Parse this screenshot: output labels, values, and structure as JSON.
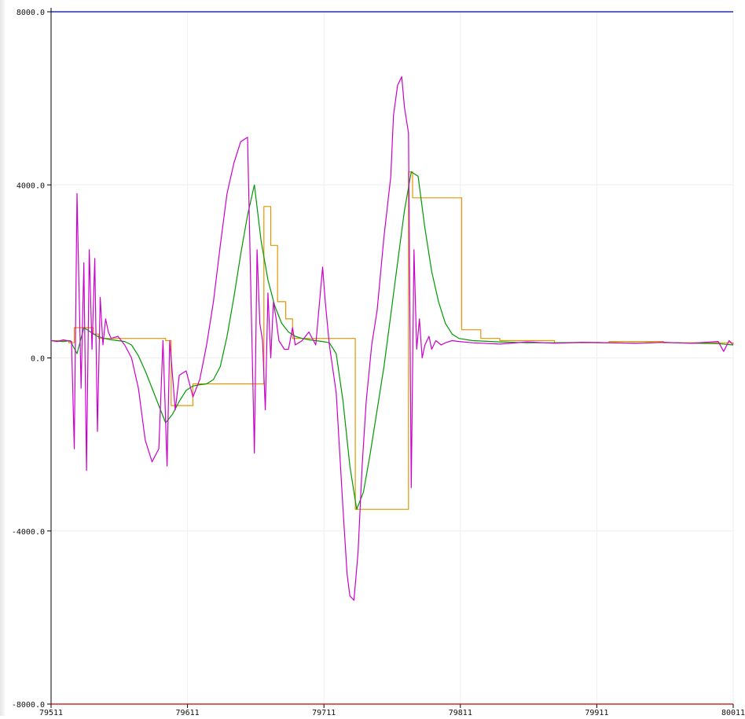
{
  "chart_data": {
    "type": "line",
    "title": "",
    "xlabel": "",
    "ylabel": "",
    "xlim": [
      79511,
      80011
    ],
    "ylim": [
      -8000,
      8000
    ],
    "grid": true,
    "x_ticks": [
      {
        "value": 79511,
        "label": "79511"
      },
      {
        "value": 79611,
        "label": "79611"
      },
      {
        "value": 79711,
        "label": "79711"
      },
      {
        "value": 79811,
        "label": "79811"
      },
      {
        "value": 79911,
        "label": "79911"
      },
      {
        "value": 80011,
        "label": "80011"
      }
    ],
    "y_ticks": [
      {
        "value": 8000,
        "label": "8000.0"
      },
      {
        "value": 4000,
        "label": "4000.0"
      },
      {
        "value": 0,
        "label": "0.0"
      },
      {
        "value": -4000,
        "label": "-4000.0"
      },
      {
        "value": -8000,
        "label": "-8000.0"
      }
    ],
    "series": [
      {
        "color": "#0000aa",
        "x": [
          79511,
          80011
        ],
        "values": [
          8000,
          8000
        ]
      },
      {
        "color": "#cc0000",
        "x": [
          79511,
          80011
        ],
        "values": [
          -8000,
          -8000
        ]
      },
      {
        "color": "#e69500",
        "step": true,
        "x": [
          79511,
          79524,
          79528,
          79542,
          79546,
          79595,
          79599,
          79615,
          79631,
          79667,
          79672,
          79677,
          79683,
          79688,
          79723,
          79734,
          79773,
          79776,
          79812,
          79826,
          79840,
          79880,
          79920,
          79960,
          80011
        ],
        "values": [
          400,
          350,
          700,
          550,
          450,
          400,
          -1100,
          -600,
          -600,
          3500,
          2600,
          1300,
          900,
          450,
          450,
          -3500,
          4300,
          3700,
          650,
          450,
          400,
          350,
          380,
          350,
          320
        ]
      },
      {
        "color": "#009900",
        "x": [
          79511,
          79520,
          79525,
          79530,
          79535,
          79540,
          79545,
          79550,
          79555,
          79560,
          79565,
          79570,
          79575,
          79580,
          79585,
          79590,
          79595,
          79600,
          79605,
          79610,
          79615,
          79620,
          79625,
          79630,
          79635,
          79640,
          79645,
          79650,
          79655,
          79660,
          79665,
          79670,
          79675,
          79680,
          79685,
          79690,
          79695,
          79700,
          79705,
          79710,
          79715,
          79720,
          79725,
          79730,
          79735,
          79740,
          79745,
          79750,
          79755,
          79760,
          79765,
          79770,
          79775,
          79780,
          79785,
          79790,
          79795,
          79800,
          79805,
          79810,
          79820,
          79840,
          79860,
          79880,
          79900,
          79920,
          79940,
          79960,
          79980,
          80000,
          80011
        ],
        "values": [
          400,
          380,
          400,
          100,
          700,
          600,
          500,
          450,
          420,
          400,
          380,
          300,
          50,
          -300,
          -700,
          -1100,
          -1500,
          -1300,
          -1000,
          -750,
          -650,
          -620,
          -600,
          -500,
          -200,
          500,
          1400,
          2400,
          3300,
          4000,
          2700,
          1800,
          1200,
          800,
          600,
          500,
          450,
          420,
          400,
          380,
          350,
          100,
          -1000,
          -2500,
          -3500,
          -3100,
          -2200,
          -1200,
          -200,
          1000,
          2200,
          3400,
          4300,
          4200,
          3000,
          2000,
          1300,
          800,
          550,
          450,
          400,
          370,
          350,
          350,
          360,
          350,
          340,
          360,
          340,
          330,
          300
        ]
      },
      {
        "color": "#cc00cc",
        "x": [
          79511,
          79516,
          79520,
          79526,
          79528,
          79530,
          79533,
          79535,
          79537,
          79539,
          79541,
          79543,
          79545,
          79547,
          79549,
          79551,
          79553,
          79555,
          79560,
          79565,
          79570,
          79575,
          79580,
          79585,
          79590,
          79593,
          79596,
          79598,
          79600,
          79602,
          79605,
          79610,
          79615,
          79620,
          79625,
          79630,
          79635,
          79640,
          79645,
          79650,
          79655,
          79660,
          79662,
          79664,
          79666,
          79668,
          79670,
          79672,
          79674,
          79676,
          79678,
          79680,
          79682,
          79685,
          79688,
          79690,
          79695,
          79700,
          79705,
          79710,
          79712,
          79715,
          79720,
          79725,
          79728,
          79730,
          79733,
          79736,
          79739,
          79742,
          79746,
          79750,
          79755,
          79760,
          79762,
          79765,
          79768,
          79770,
          79773,
          79775,
          79777,
          79779,
          79781,
          79783,
          79785,
          79788,
          79790,
          79793,
          79797,
          79800,
          79805,
          79810,
          79820,
          79840,
          79860,
          79880,
          79900,
          79920,
          79940,
          79960,
          79980,
          80000,
          80004,
          80008,
          80011
        ],
        "values": [
          400,
          380,
          420,
          380,
          -2100,
          3800,
          -700,
          2200,
          -2600,
          2500,
          200,
          2300,
          -1700,
          1400,
          300,
          900,
          600,
          450,
          500,
          300,
          0,
          -700,
          -1900,
          -2400,
          -2100,
          400,
          -2500,
          400,
          -400,
          -1200,
          -400,
          -300,
          -900,
          -500,
          300,
          1300,
          2600,
          3800,
          4500,
          5000,
          5100,
          -2200,
          2500,
          800,
          400,
          -1200,
          1500,
          0,
          1300,
          900,
          400,
          300,
          200,
          200,
          700,
          300,
          400,
          600,
          300,
          2100,
          1300,
          300,
          -800,
          -3500,
          -5000,
          -5500,
          -5600,
          -4500,
          -2500,
          -1000,
          300,
          1100,
          2800,
          4200,
          5600,
          6300,
          6500,
          5800,
          5200,
          -3000,
          2500,
          200,
          900,
          0,
          300,
          500,
          200,
          400,
          300,
          350,
          400,
          380,
          350,
          320,
          370,
          340,
          360,
          350,
          340,
          360,
          340,
          380,
          150,
          400,
          300
        ]
      }
    ]
  }
}
